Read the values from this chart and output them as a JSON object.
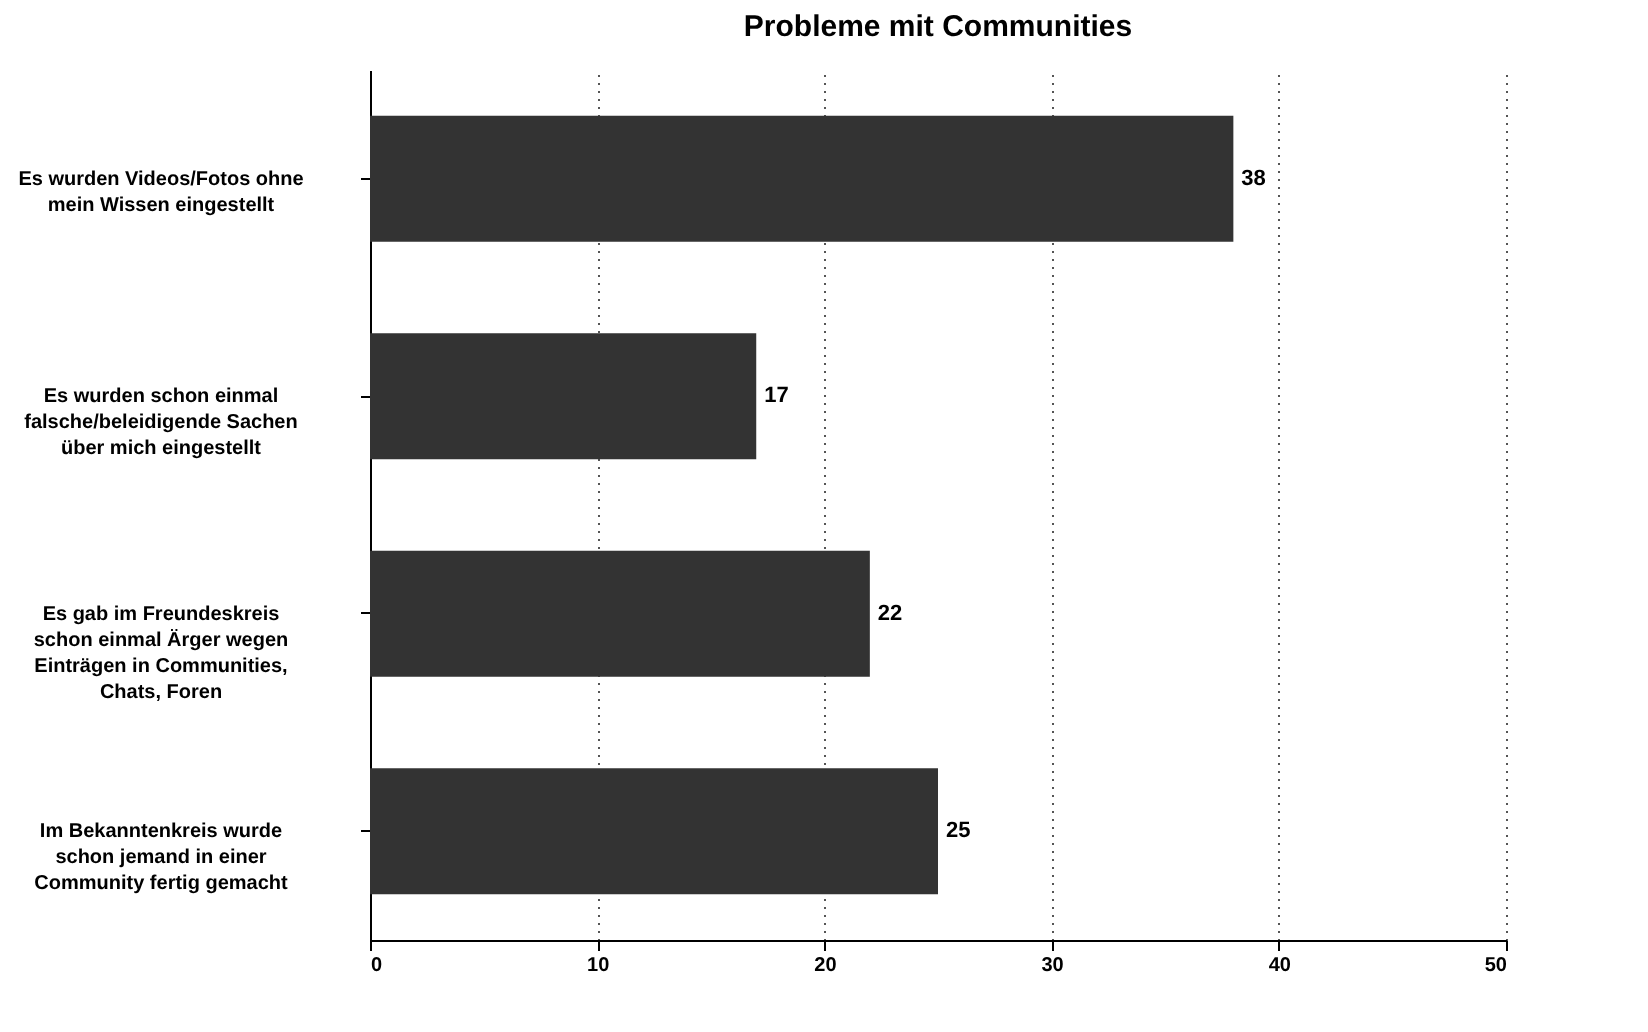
{
  "chart_data": {
    "type": "bar",
    "orientation": "horizontal",
    "title": "Probleme mit Communities",
    "categories": [
      "Es wurden Videos/Fotos ohne mein Wissen eingestellt",
      "Es wurden schon einmal falsche/beleidigende Sachen über mich eingestellt",
      "Es gab im Freundeskreis schon einmal Ärger wegen Einträgen in Communities, Chats, Foren",
      "Im Bekanntenkreis wurde schon jemand in einer Community fertig gemacht"
    ],
    "values": [
      38,
      17,
      22,
      25
    ],
    "color": "#333333",
    "xlim": [
      0,
      50
    ],
    "xticks": [
      0,
      10,
      20,
      30,
      40,
      50
    ],
    "grid": "x",
    "data_labels": true
  }
}
